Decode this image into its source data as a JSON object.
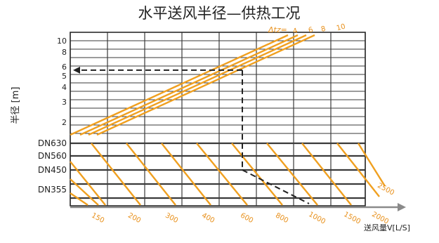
{
  "chart_data": {
    "type": "line",
    "title": "水平送风半径—供热工况",
    "ylabel": "半径 [m]",
    "xlabel": "送风量V[L/S]",
    "x_scale": "log",
    "y_scale": "log",
    "x_ticks": [
      "150",
      "200",
      "300",
      "400",
      "600",
      "800",
      "1000",
      "1500",
      "2000",
      "2500"
    ],
    "x_tick_values": [
      150,
      200,
      300,
      400,
      600,
      800,
      1000,
      1500,
      2000,
      2500
    ],
    "y_ticks": [
      "10",
      "8",
      "6",
      "5",
      "4",
      "3",
      "2"
    ],
    "y_tick_values": [
      10,
      8,
      6,
      5,
      4,
      3,
      2
    ],
    "diameters": [
      "DN630",
      "DN560",
      "DN450",
      "DN355"
    ],
    "delta_t_label": "Δtz=",
    "delta_t_series": [
      {
        "name": "4",
        "values": [
          [
            100,
            1.4
          ],
          [
            2100,
            10
          ]
        ]
      },
      {
        "name": "6",
        "values": [
          [
            120,
            1.4
          ],
          [
            2400,
            10
          ]
        ]
      },
      {
        "name": "8",
        "values": [
          [
            140,
            1.4
          ],
          [
            2800,
            10
          ]
        ]
      },
      {
        "name": "10",
        "values": [
          [
            160,
            1.4
          ],
          [
            3200,
            10
          ]
        ]
      }
    ],
    "example_path": {
      "volume": 620,
      "radius": 5.6,
      "duct": "DN450",
      "result_volume": 1000
    }
  }
}
